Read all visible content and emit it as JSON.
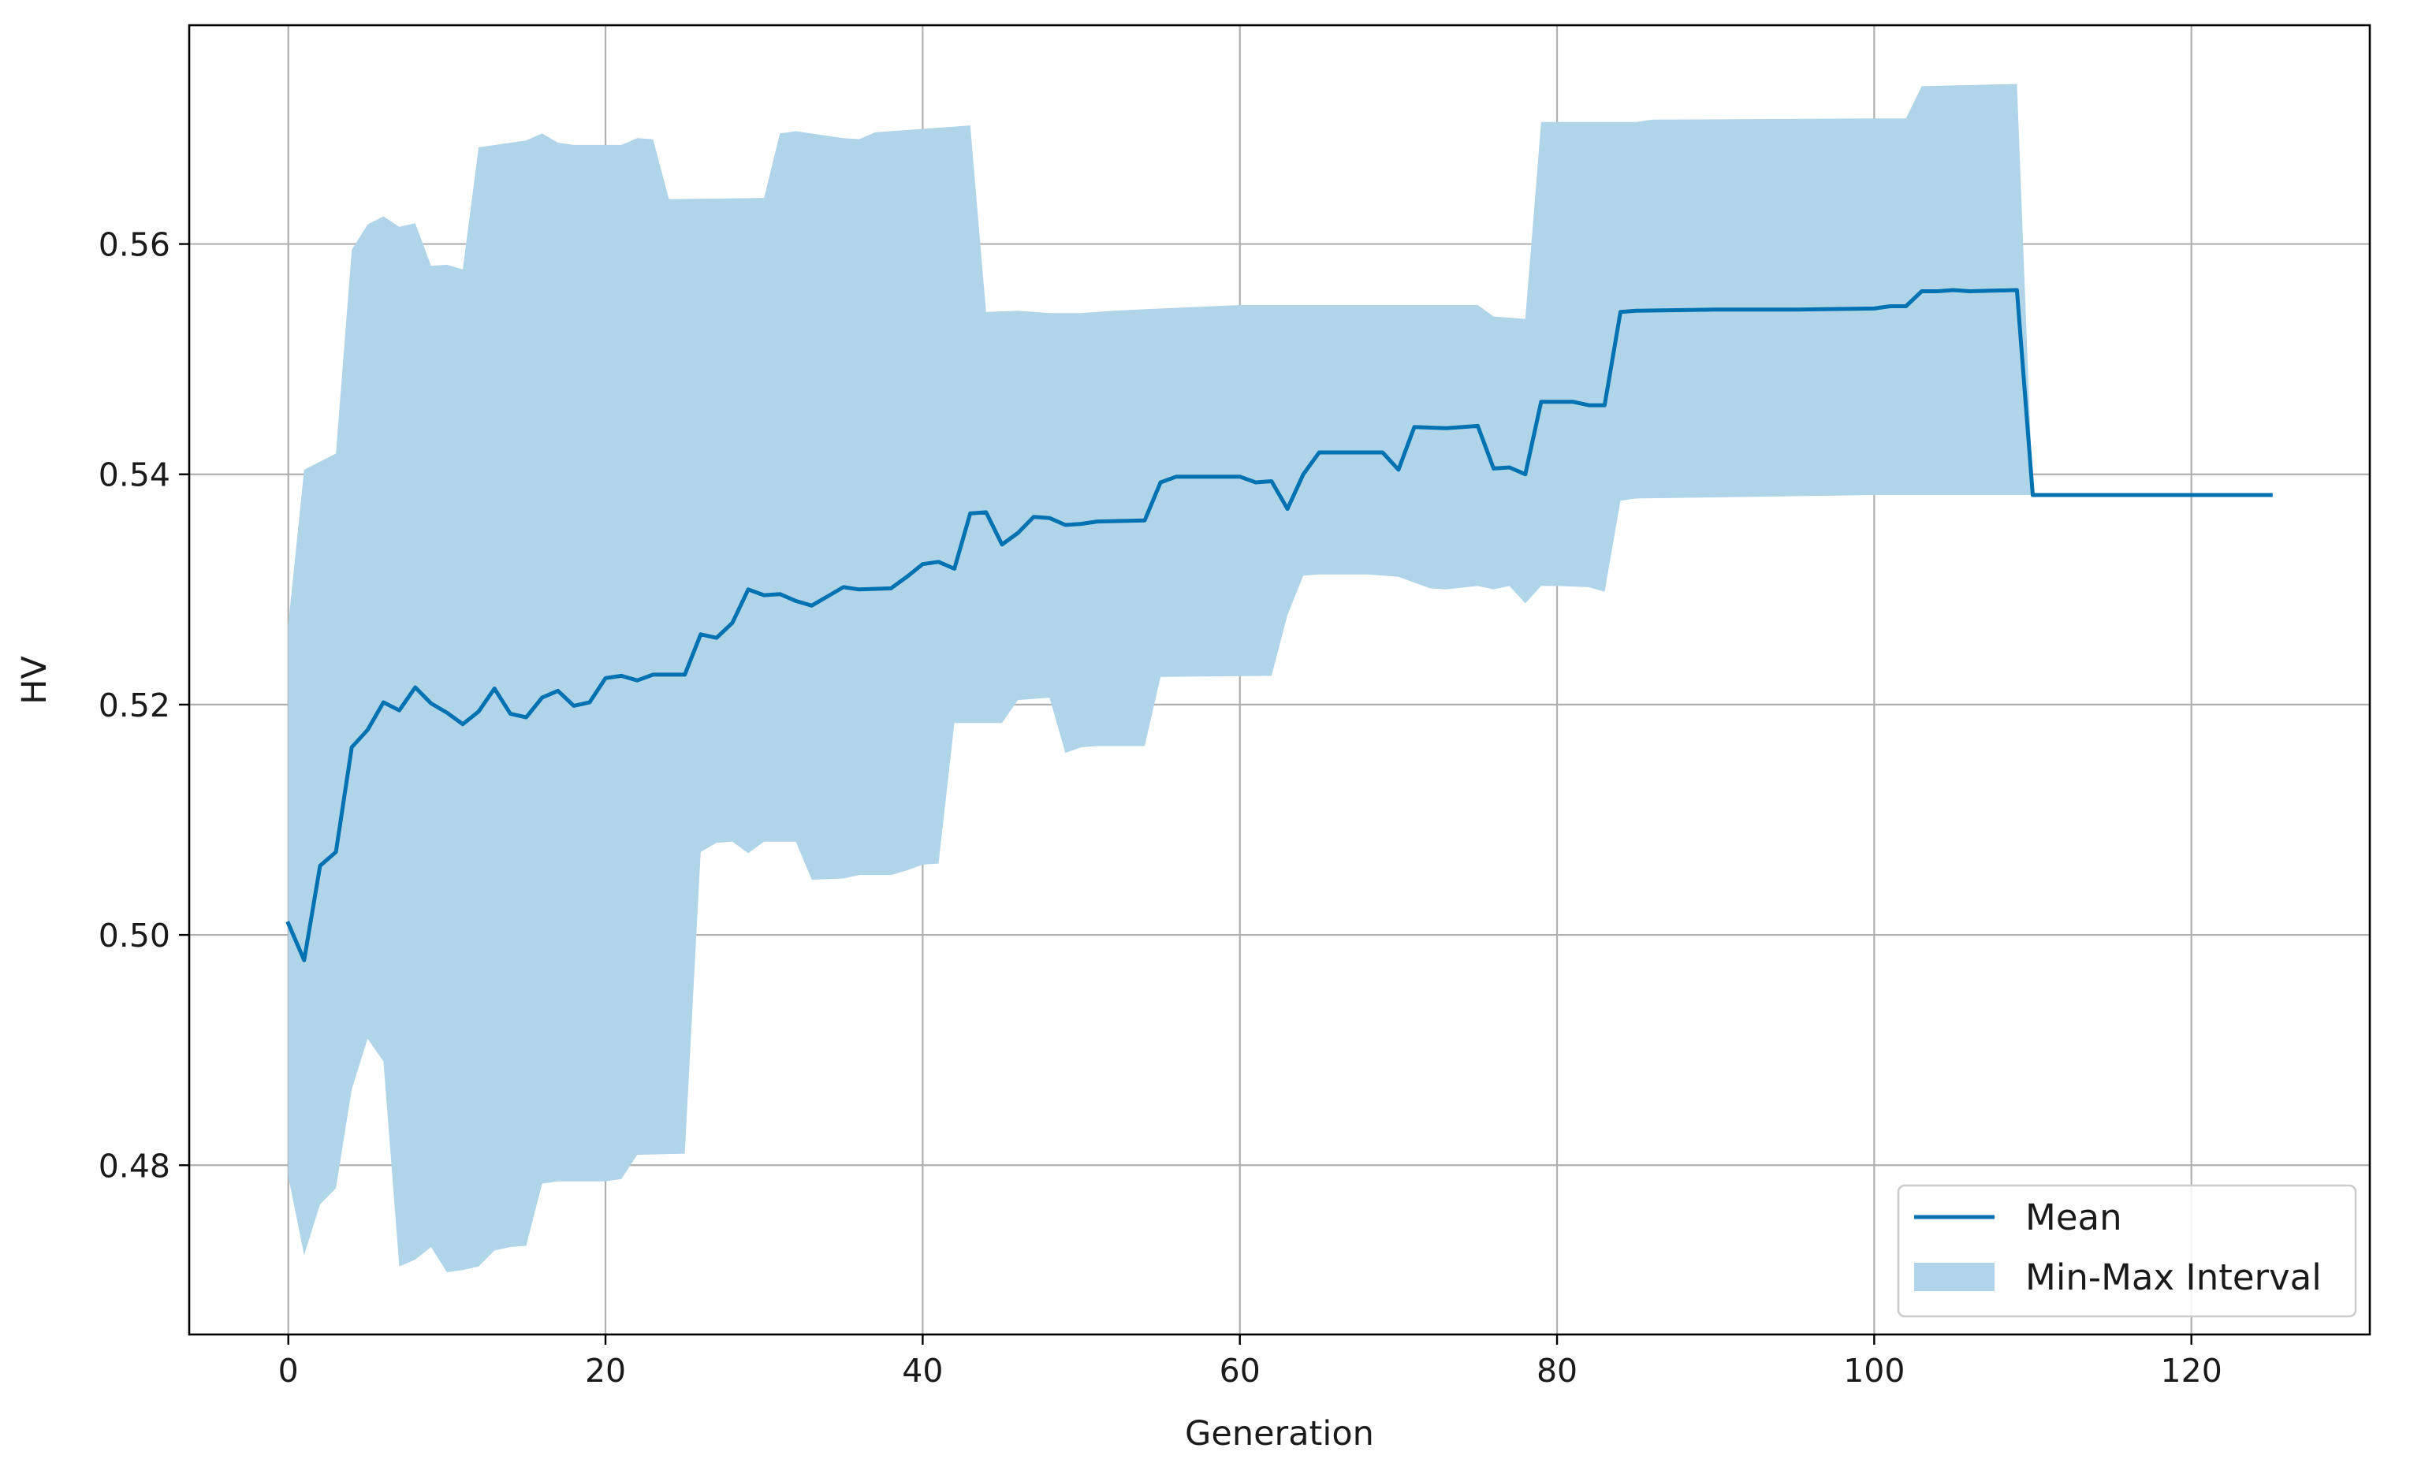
{
  "chart_data": {
    "type": "line",
    "title": "",
    "xlabel": "Generation",
    "ylabel": "HV",
    "xlim": [
      -6.25,
      131.25
    ],
    "ylim": [
      0.4653,
      0.579
    ],
    "xticks": [
      0,
      20,
      40,
      60,
      80,
      100,
      120
    ],
    "yticks": [
      0.48,
      0.5,
      0.52,
      0.54,
      0.56
    ],
    "xtick_labels": [
      "0",
      "20",
      "40",
      "60",
      "80",
      "100",
      "120"
    ],
    "ytick_labels": [
      "0.48",
      "0.50",
      "0.52",
      "0.54",
      "0.56"
    ],
    "grid": true,
    "legend_position": "lower-right",
    "colors": {
      "mean": "#0072B2",
      "interval": "#B0D5E8",
      "grid": "#b0b0b0",
      "frame": "#000000"
    },
    "series": [
      {
        "name": "Mean",
        "kind": "line",
        "points": [
          [
            0,
            0.501
          ],
          [
            1,
            0.4978
          ],
          [
            2,
            0.506
          ],
          [
            3,
            0.5072
          ],
          [
            4,
            0.5163
          ],
          [
            5,
            0.5178
          ],
          [
            6,
            0.5202
          ],
          [
            7,
            0.5195
          ],
          [
            8,
            0.5215
          ],
          [
            9,
            0.5201
          ],
          [
            10,
            0.5193
          ],
          [
            11,
            0.5183
          ],
          [
            12,
            0.5194
          ],
          [
            13,
            0.5214
          ],
          [
            14,
            0.5192
          ],
          [
            15,
            0.5189
          ],
          [
            16,
            0.5206
          ],
          [
            17,
            0.5212
          ],
          [
            18,
            0.5199
          ],
          [
            19,
            0.5202
          ],
          [
            20,
            0.5223
          ],
          [
            21,
            0.5225
          ],
          [
            22,
            0.5221
          ],
          [
            23,
            0.5226
          ],
          [
            25,
            0.5226
          ],
          [
            26,
            0.5261
          ],
          [
            27,
            0.5258
          ],
          [
            28,
            0.5271
          ],
          [
            29,
            0.53
          ],
          [
            30,
            0.5295
          ],
          [
            31,
            0.5296
          ],
          [
            32,
            0.529
          ],
          [
            33,
            0.5286
          ],
          [
            34,
            0.5294
          ],
          [
            35,
            0.5302
          ],
          [
            36,
            0.53
          ],
          [
            38,
            0.5301
          ],
          [
            39,
            0.5311
          ],
          [
            40,
            0.5322
          ],
          [
            41,
            0.5324
          ],
          [
            42,
            0.5318
          ],
          [
            43,
            0.5366
          ],
          [
            44,
            0.5367
          ],
          [
            45,
            0.5339
          ],
          [
            46,
            0.5349
          ],
          [
            47,
            0.5363
          ],
          [
            48,
            0.5362
          ],
          [
            49,
            0.5356
          ],
          [
            50,
            0.5357
          ],
          [
            51,
            0.5359
          ],
          [
            54,
            0.536
          ],
          [
            55,
            0.5393
          ],
          [
            56,
            0.5398
          ],
          [
            60,
            0.5398
          ],
          [
            61,
            0.5393
          ],
          [
            62,
            0.5394
          ],
          [
            63,
            0.537
          ],
          [
            64,
            0.54
          ],
          [
            65,
            0.5419
          ],
          [
            68,
            0.5419
          ],
          [
            69,
            0.5419
          ],
          [
            70,
            0.5404
          ],
          [
            71,
            0.5441
          ],
          [
            73,
            0.544
          ],
          [
            75,
            0.5442
          ],
          [
            76,
            0.5405
          ],
          [
            77,
            0.5406
          ],
          [
            78,
            0.54
          ],
          [
            79,
            0.5463
          ],
          [
            81,
            0.5463
          ],
          [
            82,
            0.546
          ],
          [
            83,
            0.546
          ],
          [
            84,
            0.5541
          ],
          [
            85,
            0.5542
          ],
          [
            90,
            0.5543
          ],
          [
            95,
            0.5543
          ],
          [
            100,
            0.5544
          ],
          [
            101,
            0.5546
          ],
          [
            102,
            0.5546
          ],
          [
            103,
            0.5559
          ],
          [
            104,
            0.5559
          ],
          [
            105,
            0.556
          ],
          [
            106,
            0.5559
          ],
          [
            109,
            0.556
          ],
          [
            110,
            0.5382
          ],
          [
            115,
            0.5382
          ],
          [
            120,
            0.5382
          ],
          [
            125,
            0.5382
          ]
        ]
      },
      {
        "name": "Min-Max Interval",
        "kind": "band",
        "upper": [
          [
            0,
            0.527
          ],
          [
            1,
            0.5404
          ],
          [
            3,
            0.5418
          ],
          [
            4,
            0.5595
          ],
          [
            5,
            0.5617
          ],
          [
            6,
            0.5624
          ],
          [
            7,
            0.5615
          ],
          [
            8,
            0.5618
          ],
          [
            9,
            0.5581
          ],
          [
            10,
            0.5582
          ],
          [
            11,
            0.5578
          ],
          [
            12,
            0.5684
          ],
          [
            15,
            0.569
          ],
          [
            16,
            0.5696
          ],
          [
            17,
            0.5688
          ],
          [
            18,
            0.5686
          ],
          [
            21,
            0.5686
          ],
          [
            22,
            0.5692
          ],
          [
            23,
            0.5691
          ],
          [
            24,
            0.5639
          ],
          [
            30,
            0.564
          ],
          [
            31,
            0.5696
          ],
          [
            32,
            0.5698
          ],
          [
            35,
            0.5692
          ],
          [
            36,
            0.5691
          ],
          [
            37,
            0.5697
          ],
          [
            40,
            0.57
          ],
          [
            43,
            0.5703
          ],
          [
            44,
            0.5541
          ],
          [
            46,
            0.5542
          ],
          [
            48,
            0.554
          ],
          [
            50,
            0.554
          ],
          [
            52,
            0.5542
          ],
          [
            55,
            0.5544
          ],
          [
            60,
            0.5547
          ],
          [
            75,
            0.5547
          ],
          [
            76,
            0.5537
          ],
          [
            78,
            0.5535
          ],
          [
            79,
            0.5706
          ],
          [
            85,
            0.5706
          ],
          [
            86,
            0.5708
          ],
          [
            100,
            0.5709
          ],
          [
            102,
            0.5709
          ],
          [
            103,
            0.5737
          ],
          [
            109,
            0.5739
          ],
          [
            110,
            0.5382
          ]
        ],
        "lower": [
          [
            110,
            0.5382
          ],
          [
            100,
            0.5382
          ],
          [
            90,
            0.538
          ],
          [
            85,
            0.5379
          ],
          [
            84,
            0.5377
          ],
          [
            83,
            0.5298
          ],
          [
            82,
            0.5302
          ],
          [
            80,
            0.5303
          ],
          [
            79,
            0.5303
          ],
          [
            78,
            0.5288
          ],
          [
            77,
            0.5303
          ],
          [
            76,
            0.53
          ],
          [
            75,
            0.5303
          ],
          [
            73,
            0.53
          ],
          [
            72,
            0.5301
          ],
          [
            70,
            0.5311
          ],
          [
            68,
            0.5313
          ],
          [
            65,
            0.5313
          ],
          [
            64,
            0.5312
          ],
          [
            63,
            0.5278
          ],
          [
            62,
            0.5225
          ],
          [
            55,
            0.5224
          ],
          [
            54,
            0.5164
          ],
          [
            51,
            0.5164
          ],
          [
            50,
            0.5163
          ],
          [
            49,
            0.5158
          ],
          [
            48,
            0.5206
          ],
          [
            47,
            0.5205
          ],
          [
            46,
            0.5204
          ],
          [
            45,
            0.5184
          ],
          [
            42,
            0.5184
          ],
          [
            41,
            0.5062
          ],
          [
            40,
            0.5061
          ],
          [
            39,
            0.5056
          ],
          [
            38,
            0.5052
          ],
          [
            36,
            0.5052
          ],
          [
            35,
            0.5049
          ],
          [
            33,
            0.5048
          ],
          [
            32,
            0.5081
          ],
          [
            30,
            0.5081
          ],
          [
            29,
            0.5071
          ],
          [
            28,
            0.5081
          ],
          [
            27,
            0.508
          ],
          [
            26,
            0.5072
          ],
          [
            25,
            0.481
          ],
          [
            22,
            0.4809
          ],
          [
            21,
            0.4788
          ],
          [
            20,
            0.4786
          ],
          [
            17,
            0.4786
          ],
          [
            16,
            0.4784
          ],
          [
            15,
            0.473
          ],
          [
            14,
            0.4729
          ],
          [
            13,
            0.4726
          ],
          [
            12,
            0.4712
          ],
          [
            11,
            0.4709
          ],
          [
            10,
            0.4707
          ],
          [
            9,
            0.4729
          ],
          [
            8,
            0.4718
          ],
          [
            7,
            0.4712
          ],
          [
            6,
            0.489
          ],
          [
            5,
            0.491
          ],
          [
            4,
            0.4866
          ],
          [
            3,
            0.478
          ],
          [
            2,
            0.4766
          ],
          [
            1,
            0.4722
          ],
          [
            0,
            0.479
          ]
        ]
      }
    ],
    "legend": [
      {
        "label": "Mean",
        "kind": "line"
      },
      {
        "label": "Min-Max Interval",
        "kind": "patch"
      }
    ]
  }
}
